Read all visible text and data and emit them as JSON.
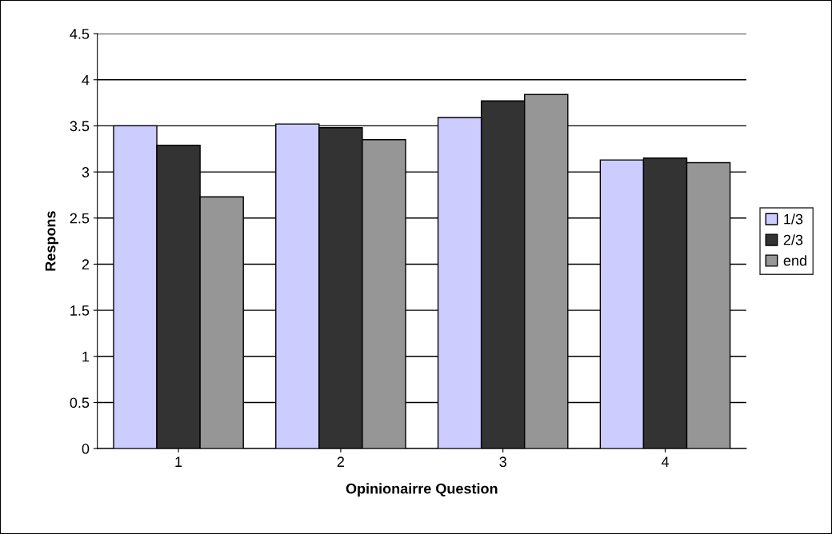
{
  "chart_data": {
    "type": "bar",
    "xlabel": "Opinionairre Question",
    "ylabel": "Respons",
    "categories": [
      "1",
      "2",
      "3",
      "4"
    ],
    "series": [
      {
        "name": "1/3",
        "color": "#ccccff",
        "values": [
          3.5,
          3.52,
          3.59,
          3.13
        ]
      },
      {
        "name": "2/3",
        "color": "#333333",
        "values": [
          3.29,
          3.48,
          3.77,
          3.15
        ]
      },
      {
        "name": "end",
        "color": "#969696",
        "values": [
          2.73,
          3.35,
          3.84,
          3.1
        ]
      }
    ],
    "ylim": [
      0,
      4.5
    ],
    "yticks": [
      0,
      0.5,
      1,
      1.5,
      2,
      2.5,
      3,
      3.5,
      4,
      4.5
    ],
    "grid": "y",
    "legend": "right"
  }
}
